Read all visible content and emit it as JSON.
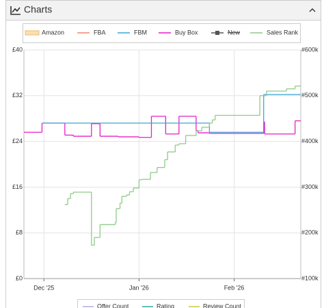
{
  "header": {
    "title": "Charts"
  },
  "chart_data": {
    "type": "line",
    "step": true,
    "grid": true,
    "legend": [
      {
        "name": "Amazon",
        "color": "#f3b95f",
        "style": "area"
      },
      {
        "name": "FBA",
        "color": "#f4856b"
      },
      {
        "name": "FBM",
        "color": "#39a6d6"
      },
      {
        "name": "Buy Box",
        "color": "#e61ec8"
      },
      {
        "name": "New",
        "color": "#555555",
        "hidden": true
      },
      {
        "name": "Sales Rank",
        "color": "#8fca88"
      }
    ],
    "series": [
      {
        "name": "Buy Box",
        "color": "#e61ec8",
        "x": [
          -0.21,
          -0.02,
          0.22,
          0.31,
          0.5,
          0.59,
          0.78,
          1.0,
          1.13,
          1.28,
          1.42,
          1.6,
          1.62,
          1.74,
          2.31,
          2.32,
          2.64,
          2.7
        ],
        "values": [
          25.6,
          27.2,
          25.1,
          24.9,
          27.1,
          24.9,
          24.8,
          24.7,
          28.4,
          25.3,
          28.4,
          25.9,
          25.5,
          25.4,
          27.4,
          25.3,
          27.6,
          27.6
        ]
      },
      {
        "name": "FBM",
        "color": "#39a6d6",
        "x": [
          -0.02,
          1.74,
          2.31,
          2.7
        ],
        "values": [
          27.2,
          25.6,
          32.2,
          32.2
        ]
      },
      {
        "name": "Sales Rank",
        "color": "#8fca88",
        "axis": "y2",
        "x": [
          0.22,
          0.25,
          0.28,
          0.31,
          0.5,
          0.53,
          0.59,
          0.75,
          0.76,
          0.8,
          0.82,
          0.87,
          0.9,
          0.94,
          1.0,
          1.03,
          1.12,
          1.19,
          1.27,
          1.3,
          1.38,
          1.42,
          1.49,
          1.6,
          1.66,
          1.74,
          1.77,
          1.8,
          2.27,
          2.34,
          2.55,
          2.64,
          2.7
        ],
        "values": [
          262000,
          275000,
          286000,
          289000,
          173000,
          190000,
          218000,
          223000,
          253000,
          265000,
          280000,
          283000,
          290000,
          298000,
          316000,
          317000,
          332000,
          343000,
          360000,
          377000,
          392000,
          395000,
          413000,
          423000,
          431000,
          440000,
          447000,
          457000,
          500000,
          510000,
          515000,
          521000,
          521000
        ]
      }
    ],
    "xlim": [
      -0.21,
      2.7
    ],
    "xticks": [
      {
        "value": 0,
        "label": "Dec '25"
      },
      {
        "value": 1,
        "label": "Jan '26"
      },
      {
        "value": 2,
        "label": "Feb '26"
      }
    ],
    "ylim": [
      0,
      40
    ],
    "yticks": [
      {
        "value": 0,
        "label": "£0"
      },
      {
        "value": 8,
        "label": "£8"
      },
      {
        "value": 16,
        "label": "£16"
      },
      {
        "value": 24,
        "label": "£24"
      },
      {
        "value": 32,
        "label": "£32"
      },
      {
        "value": 40,
        "label": "£40"
      }
    ],
    "y2lim": [
      100000,
      600000
    ],
    "y2ticks": [
      {
        "value": 100000,
        "label": "#100k"
      },
      {
        "value": 200000,
        "label": "#200k"
      },
      {
        "value": 300000,
        "label": "#300k"
      },
      {
        "value": 400000,
        "label": "#400k"
      },
      {
        "value": 500000,
        "label": "#500k"
      },
      {
        "value": 600000,
        "label": "#600k"
      }
    ],
    "secondary_legend": [
      {
        "name": "Offer Count",
        "color": "#b4a8e6"
      },
      {
        "name": "Rating",
        "color": "#2fa5a0"
      },
      {
        "name": "Review Count",
        "color": "#c8c83a"
      }
    ]
  }
}
